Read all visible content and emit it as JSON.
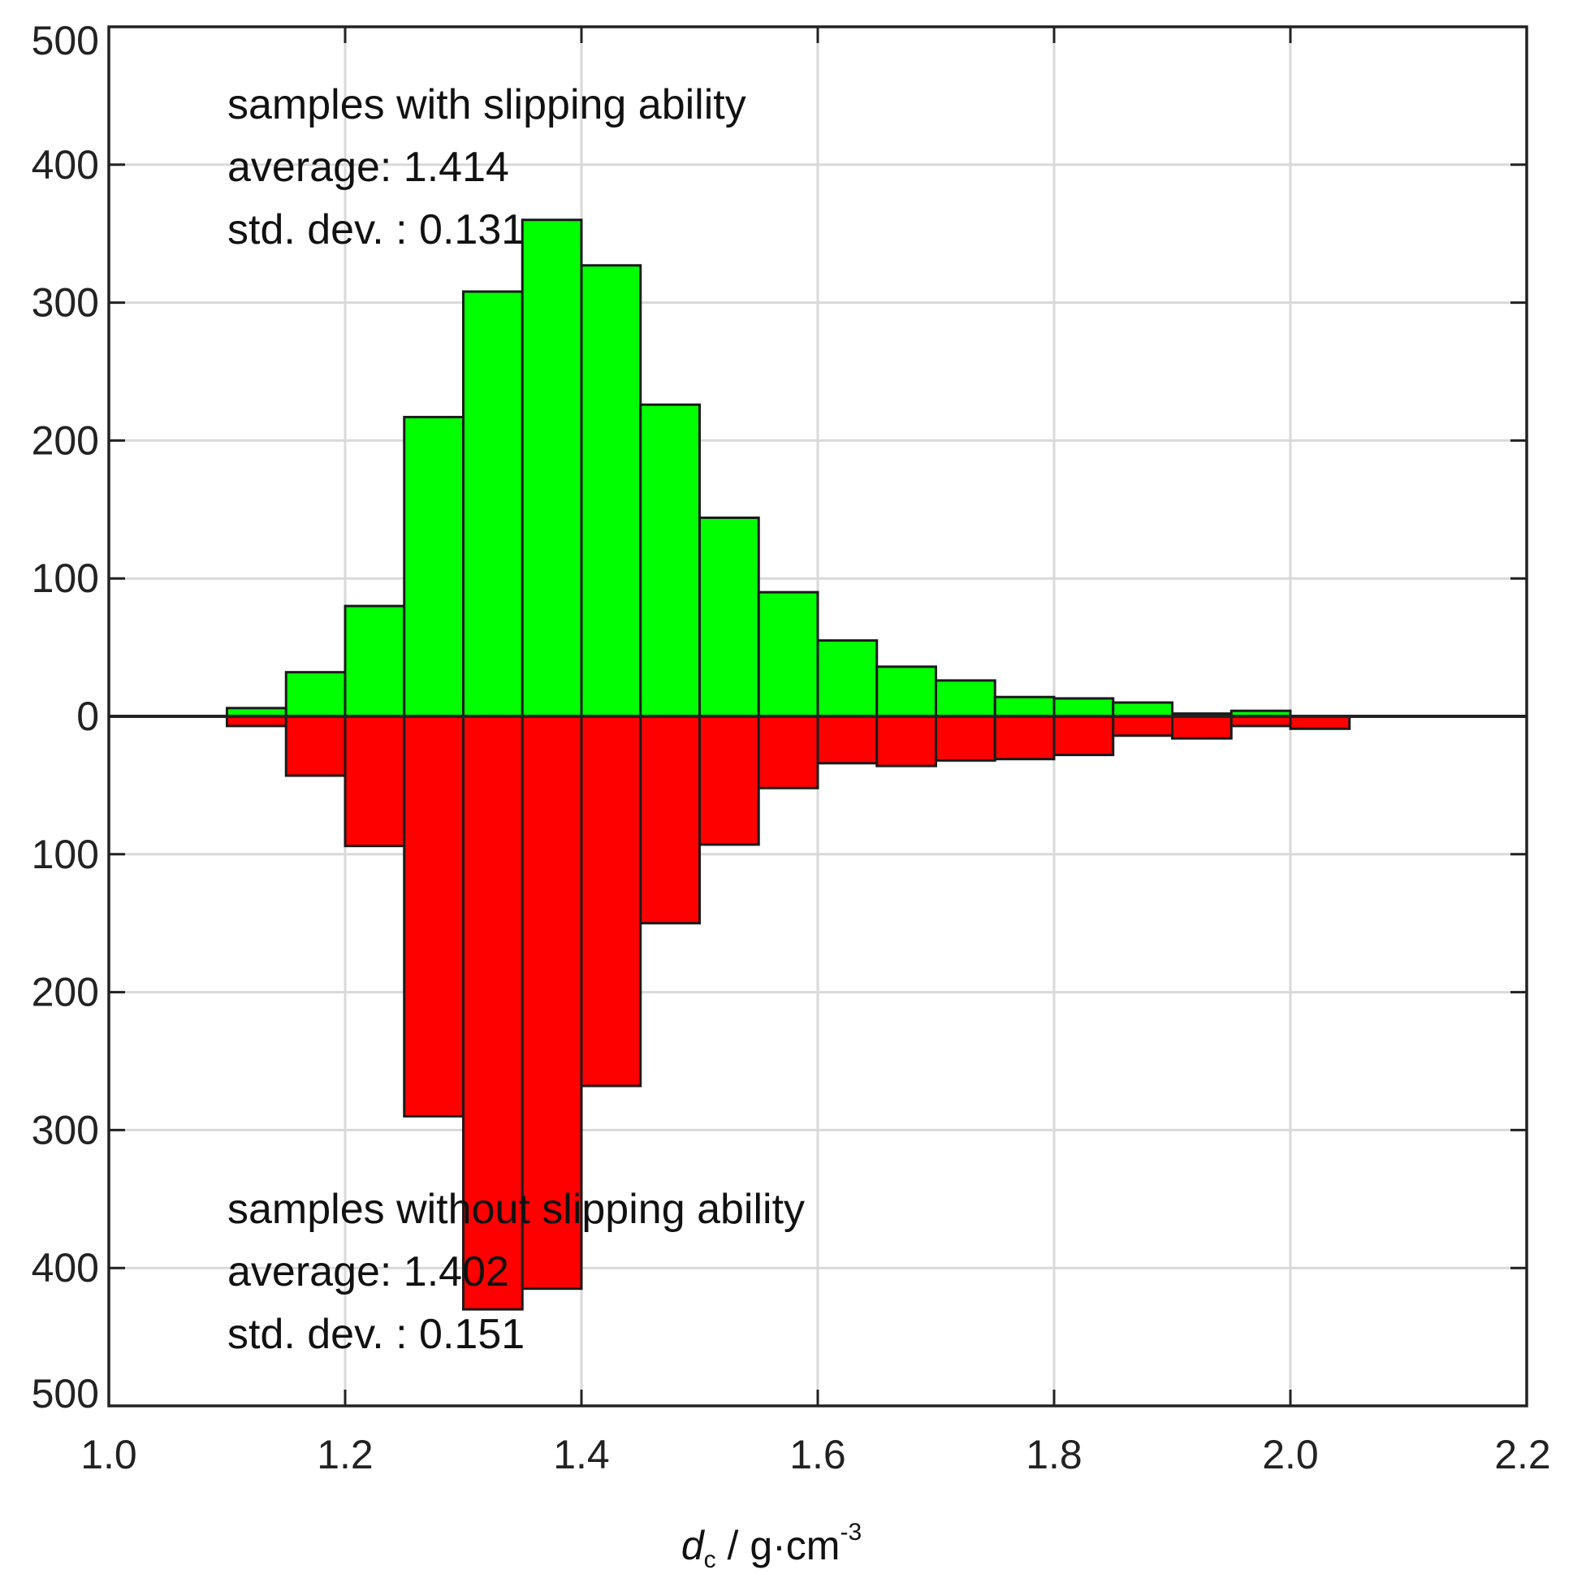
{
  "chart_data": {
    "type": "bar",
    "layout": "mirrored-histogram",
    "bin_edges": [
      1.1,
      1.15,
      1.2,
      1.25,
      1.3,
      1.35,
      1.4,
      1.45,
      1.5,
      1.55,
      1.6,
      1.65,
      1.7,
      1.75,
      1.8,
      1.85,
      1.9,
      1.95,
      2.0,
      2.05
    ],
    "series": [
      {
        "direction": "up",
        "color": "#00ff00",
        "values": [
          6,
          32,
          80,
          217,
          308,
          360,
          327,
          226,
          144,
          90,
          55,
          36,
          26,
          14,
          13,
          10,
          2,
          4,
          0
        ]
      },
      {
        "direction": "down",
        "color": "#ff0000",
        "values": [
          7,
          43,
          94,
          290,
          430,
          415,
          268,
          150,
          93,
          52,
          34,
          36,
          32,
          31,
          28,
          14,
          16,
          7,
          9
        ]
      }
    ],
    "xlim": [
      1.0,
      2.2
    ],
    "ylim": [
      -500,
      500
    ],
    "x_ticks": [
      "1.0",
      "1.2",
      "1.4",
      "1.6",
      "1.8",
      "2.0",
      "2.2"
    ],
    "y_ticks": [
      "500",
      "400",
      "300",
      "200",
      "100",
      "0",
      "100",
      "200",
      "300",
      "400",
      "500"
    ],
    "xlabel": {
      "main": "d",
      "subscript": "c",
      "units": " / g·cm",
      "superscript": "-3"
    },
    "grid": true,
    "annotations": {
      "upper": [
        "samples with slipping ability",
        "average: 1.414",
        "std. dev. : 0.131"
      ],
      "lower": [
        "samples without slipping ability",
        "average: 1.402",
        "std. dev. : 0.151"
      ]
    }
  }
}
